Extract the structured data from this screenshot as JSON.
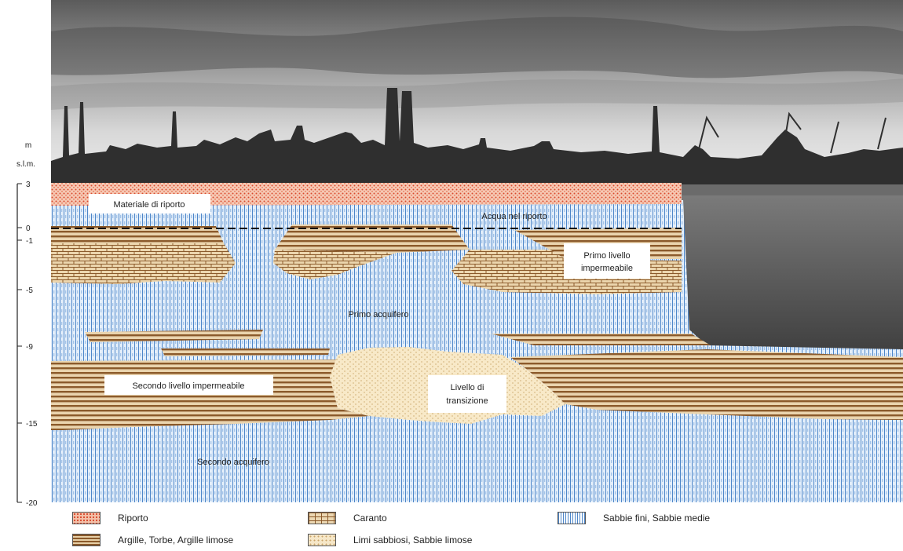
{
  "axis": {
    "unit_line1": "m",
    "unit_line2": "s.l.m.",
    "ticks": [
      "3",
      "0",
      "-1",
      "-5",
      "-9",
      "-15",
      "-20"
    ]
  },
  "labels": {
    "materiale_riporto": "Materiale di riporto",
    "acqua_riporto": "Acqua nel riporto",
    "primo_livello": [
      "Primo livello",
      "impermeabile"
    ],
    "primo_acquifero": "Primo acquifero",
    "secondo_livello": "Secondo livello impermeabile",
    "livello_transizione": [
      "Livello di",
      "transizione"
    ],
    "secondo_acquifero": "Secondo acquifero"
  },
  "legend": {
    "riporto": "Riporto",
    "argille": "Argille, Torbe, Argille limose",
    "caranto": "Caranto",
    "limi": "Limi sabbiosi, Sabbie limose",
    "sabbie": "Sabbie fini, Sabbie medie"
  },
  "colors": {
    "riporto": "#d94a2e",
    "argille": "#8b5a2b",
    "caranto": "#c9a070",
    "limi": "#f2dca8",
    "sabbie": "#4d86c9"
  }
}
